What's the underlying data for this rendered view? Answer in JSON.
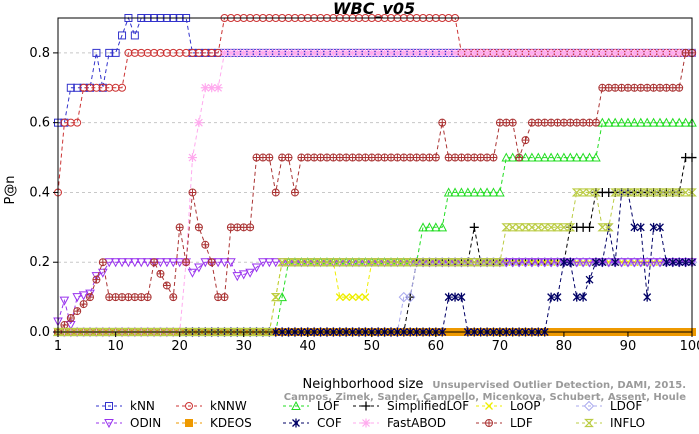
{
  "chart_data": {
    "type": "line",
    "title": "WBC_v05",
    "xlabel": "Neighborhood size",
    "ylabel": "P@n",
    "xlim": [
      1,
      100
    ],
    "ylim": [
      0,
      0.9
    ],
    "xticks": [
      1,
      10,
      20,
      30,
      40,
      50,
      60,
      70,
      80,
      90,
      100
    ],
    "yticks": [
      0.0,
      0.2,
      0.4,
      0.6,
      0.8
    ],
    "ytick_labels": [
      "0.0",
      "0.2",
      "0.4",
      "0.6",
      "0.8"
    ],
    "grid": "horizontal",
    "legend_position": "bottom",
    "credit": [
      "Unsupervised Outlier Detection, DAMI, 2015.",
      "Campos, Zimek, Sander, Campello, Micenkova, Schubert, Assent, Houle"
    ],
    "series": [
      {
        "name": "kNN",
        "color": "#3333cc",
        "marker": "square",
        "dash": "4,3",
        "points": [
          [
            1,
            0.6
          ],
          [
            2,
            0.6
          ],
          [
            3,
            0.7
          ],
          [
            5,
            0.7
          ],
          [
            6,
            0.7
          ],
          [
            7,
            0.8
          ],
          [
            8,
            0.7
          ],
          [
            9,
            0.8
          ],
          [
            10,
            0.8
          ],
          [
            12,
            0.9
          ],
          [
            13,
            0.85
          ],
          [
            14,
            0.9
          ],
          [
            15,
            0.9
          ],
          [
            20,
            0.9
          ],
          [
            21,
            0.9
          ],
          [
            22,
            0.8
          ],
          [
            30,
            0.8
          ],
          [
            40,
            0.8
          ],
          [
            50,
            0.8
          ],
          [
            60,
            0.8
          ],
          [
            70,
            0.8
          ],
          [
            80,
            0.8
          ],
          [
            90,
            0.8
          ],
          [
            100,
            0.8
          ]
        ]
      },
      {
        "name": "kNNW",
        "color": "#cc3333",
        "marker": "circle",
        "dash": "4,3",
        "points": [
          [
            1,
            0.4
          ],
          [
            2,
            0.6
          ],
          [
            3,
            0.6
          ],
          [
            4,
            0.6
          ],
          [
            5,
            0.7
          ],
          [
            9,
            0.7
          ],
          [
            10,
            0.7
          ],
          [
            11,
            0.7
          ],
          [
            12,
            0.8
          ],
          [
            20,
            0.8
          ],
          [
            25,
            0.8
          ],
          [
            26,
            0.8
          ],
          [
            27,
            0.9
          ],
          [
            40,
            0.9
          ],
          [
            60,
            0.9
          ],
          [
            63,
            0.9
          ],
          [
            64,
            0.8
          ],
          [
            70,
            0.8
          ],
          [
            80,
            0.8
          ],
          [
            90,
            0.8
          ],
          [
            100,
            0.8
          ]
        ]
      },
      {
        "name": "LOF",
        "color": "#22dd22",
        "marker": "triangle-up",
        "dash": "4,3",
        "points": [
          [
            1,
            0
          ],
          [
            20,
            0
          ],
          [
            34,
            0
          ],
          [
            35,
            0
          ],
          [
            36,
            0.1
          ],
          [
            37,
            0.2
          ],
          [
            40,
            0.2
          ],
          [
            50,
            0.2
          ],
          [
            57,
            0.2
          ],
          [
            58,
            0.3
          ],
          [
            61,
            0.3
          ],
          [
            62,
            0.4
          ],
          [
            70,
            0.4
          ],
          [
            71,
            0.5
          ],
          [
            80,
            0.5
          ],
          [
            85,
            0.5
          ],
          [
            86,
            0.6
          ],
          [
            100,
            0.6
          ]
        ]
      },
      {
        "name": "SimplifiedLOF",
        "color": "#000000",
        "marker": "plus",
        "dash": "4,3",
        "points": [
          [
            1,
            0
          ],
          [
            36,
            0
          ],
          [
            40,
            0
          ],
          [
            50,
            0
          ],
          [
            55,
            0
          ],
          [
            56,
            0.1
          ],
          [
            57,
            0.2
          ],
          [
            60,
            0.2
          ],
          [
            65,
            0.2
          ],
          [
            66,
            0.3
          ],
          [
            67,
            0.2
          ],
          [
            75,
            0.2
          ],
          [
            80,
            0.2
          ],
          [
            81,
            0.3
          ],
          [
            84,
            0.3
          ],
          [
            85,
            0.4
          ],
          [
            90,
            0.4
          ],
          [
            98,
            0.4
          ],
          [
            99,
            0.5
          ],
          [
            100,
            0.5
          ]
        ]
      },
      {
        "name": "LoOP",
        "color": "#eeee00",
        "marker": "x",
        "dash": "4,3",
        "points": [
          [
            1,
            0
          ],
          [
            34,
            0
          ],
          [
            35,
            0.1
          ],
          [
            36,
            0.2
          ],
          [
            40,
            0.2
          ],
          [
            44,
            0.2
          ],
          [
            45,
            0.1
          ],
          [
            49,
            0.1
          ],
          [
            50,
            0.2
          ],
          [
            70,
            0.2
          ],
          [
            80,
            0.2
          ],
          [
            90,
            0.2
          ],
          [
            100,
            0.2
          ]
        ]
      },
      {
        "name": "LDOF",
        "color": "#aaaaee",
        "marker": "diamond",
        "dash": "4,3",
        "points": [
          [
            1,
            0
          ],
          [
            20,
            0
          ],
          [
            40,
            0
          ],
          [
            50,
            0
          ],
          [
            54,
            0
          ],
          [
            55,
            0.1
          ],
          [
            56,
            0.1
          ],
          [
            57,
            0.2
          ],
          [
            70,
            0.2
          ],
          [
            80,
            0.2
          ],
          [
            90,
            0.2
          ],
          [
            100,
            0.2
          ]
        ]
      },
      {
        "name": "ODIN",
        "color": "#9933ee",
        "marker": "triangle-down",
        "dash": "4,3",
        "points": [
          [
            1,
            0.03
          ],
          [
            2,
            0.09
          ],
          [
            3,
            0.02
          ],
          [
            4,
            0.1
          ],
          [
            6,
            0.11
          ],
          [
            7,
            0.16
          ],
          [
            8,
            0.17
          ],
          [
            9,
            0.2
          ],
          [
            20,
            0.2
          ],
          [
            21,
            0.2
          ],
          [
            22,
            0.17
          ],
          [
            24,
            0.2
          ],
          [
            28,
            0.2
          ],
          [
            29,
            0.16
          ],
          [
            31,
            0.17
          ],
          [
            33,
            0.2
          ],
          [
            40,
            0.2
          ],
          [
            60,
            0.2
          ],
          [
            80,
            0.2
          ],
          [
            100,
            0.2
          ]
        ]
      },
      {
        "name": "KDEOS",
        "color": "#ee9900",
        "marker": "square-filled",
        "dash": "4,3",
        "points": [
          [
            1,
            0
          ],
          [
            20,
            0
          ],
          [
            40,
            0
          ],
          [
            60,
            0
          ],
          [
            80,
            0
          ],
          [
            100,
            0
          ]
        ]
      },
      {
        "name": "COF",
        "color": "#000066",
        "marker": "asterisk",
        "dash": "4,3",
        "points": [
          [
            1,
            0
          ],
          [
            40,
            0
          ],
          [
            60,
            0
          ],
          [
            61,
            0
          ],
          [
            62,
            0.1
          ],
          [
            64,
            0.1
          ],
          [
            65,
            0
          ],
          [
            77,
            0
          ],
          [
            78,
            0.1
          ],
          [
            79,
            0.1
          ],
          [
            80,
            0.2
          ],
          [
            81,
            0.2
          ],
          [
            82,
            0.1
          ],
          [
            83,
            0.1
          ],
          [
            85,
            0.2
          ],
          [
            86,
            0.2
          ],
          [
            87,
            0.3
          ],
          [
            88,
            0.2
          ],
          [
            89,
            0.4
          ],
          [
            90,
            0.4
          ],
          [
            91,
            0.3
          ],
          [
            92,
            0.3
          ],
          [
            93,
            0.1
          ],
          [
            94,
            0.3
          ],
          [
            95,
            0.3
          ],
          [
            96,
            0.2
          ],
          [
            97,
            0.2
          ],
          [
            100,
            0.2
          ]
        ]
      },
      {
        "name": "FastABOD",
        "color": "#ffaaee",
        "marker": "star",
        "dash": "4,3",
        "points": [
          [
            1,
            0
          ],
          [
            20,
            0
          ],
          [
            21,
            0.2
          ],
          [
            22,
            0.5
          ],
          [
            23,
            0.6
          ],
          [
            24,
            0.7
          ],
          [
            26,
            0.7
          ],
          [
            27,
            0.8
          ],
          [
            40,
            0.8
          ],
          [
            60,
            0.8
          ],
          [
            80,
            0.8
          ],
          [
            100,
            0.8
          ]
        ]
      },
      {
        "name": "LDF",
        "color": "#aa3333",
        "marker": "circle-plus",
        "dash": "4,3",
        "points": [
          [
            1,
            0
          ],
          [
            6,
            0.1
          ],
          [
            8,
            0.2
          ],
          [
            9,
            0.1
          ],
          [
            15,
            0.1
          ],
          [
            16,
            0.2
          ],
          [
            19,
            0.1
          ],
          [
            20,
            0.3
          ],
          [
            21,
            0.2
          ],
          [
            22,
            0.4
          ],
          [
            23,
            0.3
          ],
          [
            25,
            0.2
          ],
          [
            26,
            0.1
          ],
          [
            27,
            0.1
          ],
          [
            28,
            0.3
          ],
          [
            31,
            0.3
          ],
          [
            32,
            0.5
          ],
          [
            34,
            0.5
          ],
          [
            35,
            0.4
          ],
          [
            36,
            0.5
          ],
          [
            37,
            0.5
          ],
          [
            38,
            0.4
          ],
          [
            39,
            0.5
          ],
          [
            60,
            0.5
          ],
          [
            61,
            0.6
          ],
          [
            62,
            0.5
          ],
          [
            69,
            0.5
          ],
          [
            70,
            0.6
          ],
          [
            72,
            0.6
          ],
          [
            73,
            0.5
          ],
          [
            75,
            0.6
          ],
          [
            85,
            0.6
          ],
          [
            86,
            0.7
          ],
          [
            98,
            0.7
          ],
          [
            99,
            0.8
          ],
          [
            100,
            0.8
          ]
        ]
      },
      {
        "name": "INFLO",
        "color": "#bbcc44",
        "marker": "hourglass",
        "dash": "4,3",
        "points": [
          [
            1,
            0
          ],
          [
            34,
            0
          ],
          [
            35,
            0.1
          ],
          [
            36,
            0.2
          ],
          [
            40,
            0.2
          ],
          [
            50,
            0.2
          ],
          [
            60,
            0.2
          ],
          [
            70,
            0.2
          ],
          [
            71,
            0.3
          ],
          [
            80,
            0.3
          ],
          [
            81,
            0.3
          ],
          [
            82,
            0.4
          ],
          [
            85,
            0.4
          ],
          [
            86,
            0.3
          ],
          [
            87,
            0.3
          ],
          [
            88,
            0.4
          ],
          [
            100,
            0.4
          ]
        ]
      }
    ],
    "legend_order": [
      [
        "kNN",
        "kNNW",
        "LOF",
        "SimplifiedLOF",
        "LoOP",
        "LDOF"
      ],
      [
        "ODIN",
        "KDEOS",
        "COF",
        "FastABOD",
        "LDF",
        "INFLO"
      ]
    ]
  }
}
